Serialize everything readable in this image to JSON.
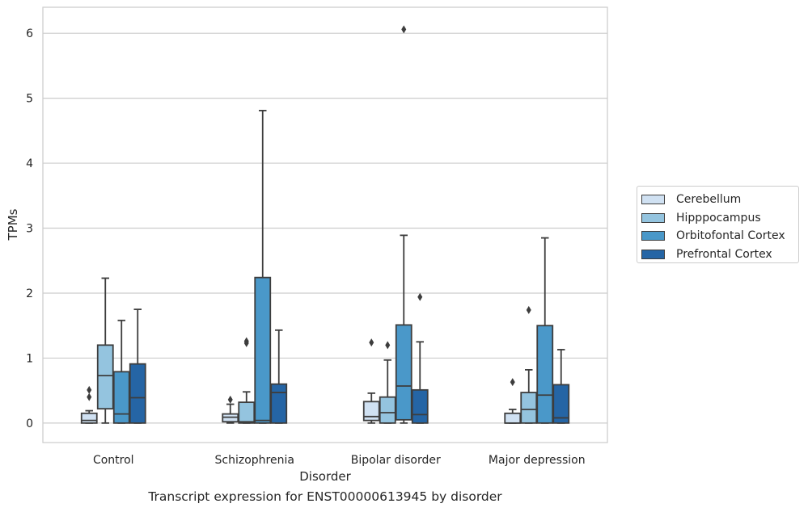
{
  "chart_data": {
    "type": "box",
    "title": "",
    "caption": "Transcript expression for ENST00000613945 by disorder",
    "xlabel": "Disorder",
    "ylabel": "TPMs",
    "ylim": [
      -0.3,
      6.4
    ],
    "yticks": [
      0,
      1,
      2,
      3,
      4,
      5,
      6
    ],
    "grid": "horizontal",
    "legend_position": "right",
    "categories": [
      "Control",
      "Schizophrenia",
      "Bipolar disorder",
      "Major depression"
    ],
    "series": [
      {
        "name": "Cerebellum",
        "color": "#d0e1f2",
        "boxes": [
          {
            "whisker_low": 0.0,
            "q1": 0.0,
            "median": 0.04,
            "q3": 0.15,
            "whisker_high": 0.19,
            "outliers": [
              0.4,
              0.51
            ]
          },
          {
            "whisker_low": 0.0,
            "q1": 0.02,
            "median": 0.09,
            "q3": 0.14,
            "whisker_high": 0.29,
            "outliers": [
              0.36
            ]
          },
          {
            "whisker_low": 0.0,
            "q1": 0.04,
            "median": 0.1,
            "q3": 0.33,
            "whisker_high": 0.46,
            "outliers": [
              1.24
            ]
          },
          {
            "whisker_low": 0.0,
            "q1": 0.0,
            "median": 0.0,
            "q3": 0.15,
            "whisker_high": 0.21,
            "outliers": [
              0.63
            ]
          }
        ]
      },
      {
        "name": "Hipppocampus",
        "color": "#94c4df",
        "boxes": [
          {
            "whisker_low": 0.0,
            "q1": 0.22,
            "median": 0.73,
            "q3": 1.2,
            "whisker_high": 2.23,
            "outliers": []
          },
          {
            "whisker_low": 0.0,
            "q1": 0.0,
            "median": 0.02,
            "q3": 0.32,
            "whisker_high": 0.48,
            "outliers": [
              1.23,
              1.26
            ]
          },
          {
            "whisker_low": 0.0,
            "q1": 0.0,
            "median": 0.16,
            "q3": 0.4,
            "whisker_high": 0.97,
            "outliers": [
              1.2
            ]
          },
          {
            "whisker_low": 0.0,
            "q1": 0.0,
            "median": 0.21,
            "q3": 0.47,
            "whisker_high": 0.82,
            "outliers": [
              1.74
            ]
          }
        ]
      },
      {
        "name": "Orbitofontal Cortex",
        "color": "#4a98c9",
        "boxes": [
          {
            "whisker_low": 0.0,
            "q1": 0.0,
            "median": 0.14,
            "q3": 0.79,
            "whisker_high": 1.58,
            "outliers": []
          },
          {
            "whisker_low": 0.0,
            "q1": 0.0,
            "median": 0.04,
            "q3": 2.24,
            "whisker_high": 4.81,
            "outliers": []
          },
          {
            "whisker_low": 0.0,
            "q1": 0.05,
            "median": 0.57,
            "q3": 1.51,
            "whisker_high": 2.89,
            "outliers": [
              6.06
            ]
          },
          {
            "whisker_low": 0.0,
            "q1": 0.0,
            "median": 0.43,
            "q3": 1.5,
            "whisker_high": 2.85,
            "outliers": []
          }
        ]
      },
      {
        "name": "Prefrontal Cortex",
        "color": "#2565a5",
        "boxes": [
          {
            "whisker_low": 0.0,
            "q1": 0.0,
            "median": 0.39,
            "q3": 0.91,
            "whisker_high": 1.75,
            "outliers": []
          },
          {
            "whisker_low": 0.0,
            "q1": 0.0,
            "median": 0.47,
            "q3": 0.6,
            "whisker_high": 1.43,
            "outliers": []
          },
          {
            "whisker_low": 0.0,
            "q1": 0.0,
            "median": 0.13,
            "q3": 0.51,
            "whisker_high": 1.25,
            "outliers": [
              1.94
            ]
          },
          {
            "whisker_low": 0.0,
            "q1": 0.0,
            "median": 0.08,
            "q3": 0.59,
            "whisker_high": 1.13,
            "outliers": []
          }
        ]
      }
    ]
  }
}
